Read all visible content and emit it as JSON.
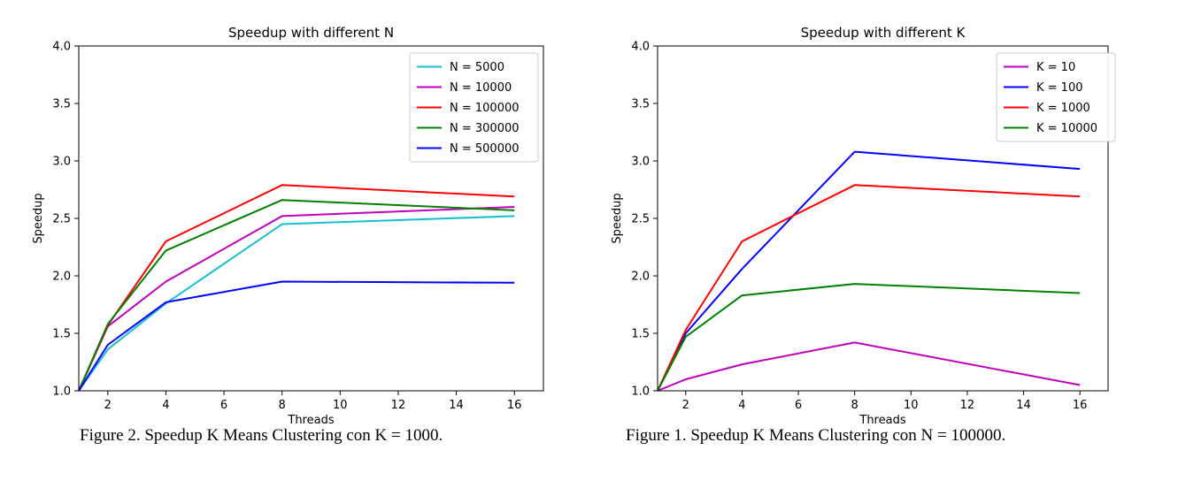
{
  "chart_data": [
    {
      "type": "line",
      "title": "Speedup with different N",
      "xlabel": "Threads",
      "ylabel": "Speedup",
      "xlim": [
        1,
        17
      ],
      "ylim": [
        1.0,
        4.0
      ],
      "xticks": [
        2,
        4,
        6,
        8,
        10,
        12,
        14,
        16
      ],
      "yticks": [
        1.0,
        1.5,
        2.0,
        2.5,
        3.0,
        3.5,
        4.0
      ],
      "ytick_labels": [
        "1.0",
        "1.5",
        "2.0",
        "2.5",
        "3.0",
        "3.5",
        "4.0"
      ],
      "grid": false,
      "legend_position": "top-right",
      "x": [
        1,
        2,
        4,
        8,
        16
      ],
      "series": [
        {
          "name": "N = 5000",
          "color": "#17becf",
          "values": [
            1.0,
            1.36,
            1.76,
            2.45,
            2.52
          ]
        },
        {
          "name": "N = 10000",
          "color": "#bf00bf",
          "values": [
            1.0,
            1.56,
            1.95,
            2.52,
            2.6
          ]
        },
        {
          "name": "N = 100000",
          "color": "#ff0000",
          "values": [
            1.0,
            1.57,
            2.3,
            2.79,
            2.69
          ]
        },
        {
          "name": "N = 300000",
          "color": "#008000",
          "values": [
            1.0,
            1.58,
            2.22,
            2.66,
            2.57
          ]
        },
        {
          "name": "N = 500000",
          "color": "#0000ff",
          "values": [
            1.0,
            1.4,
            1.77,
            1.95,
            1.94
          ]
        }
      ],
      "caption": "Figure 2. Speedup K Means Clustering con K = 1000."
    },
    {
      "type": "line",
      "title": "Speedup with different K",
      "xlabel": "Threads",
      "ylabel": "Speedup",
      "xlim": [
        1,
        17
      ],
      "ylim": [
        1.0,
        4.0
      ],
      "xticks": [
        2,
        4,
        6,
        8,
        10,
        12,
        14,
        16
      ],
      "yticks": [
        1.0,
        1.5,
        2.0,
        2.5,
        3.0,
        3.5,
        4.0
      ],
      "ytick_labels": [
        "1.0",
        "1.5",
        "2.0",
        "2.5",
        "3.0",
        "3.5",
        "4.0"
      ],
      "grid": false,
      "legend_position": "top-right",
      "x": [
        1,
        2,
        4,
        8,
        16
      ],
      "series": [
        {
          "name": "K = 10",
          "color": "#bf00bf",
          "values": [
            1.0,
            1.1,
            1.23,
            1.42,
            1.05
          ]
        },
        {
          "name": "K = 100",
          "color": "#0000ff",
          "values": [
            1.0,
            1.5,
            2.06,
            3.08,
            2.93
          ]
        },
        {
          "name": "K = 1000",
          "color": "#ff0000",
          "values": [
            1.0,
            1.53,
            2.3,
            2.79,
            2.69
          ]
        },
        {
          "name": "K = 10000",
          "color": "#008000",
          "values": [
            1.0,
            1.47,
            1.83,
            1.93,
            1.85
          ]
        }
      ],
      "caption": "Figure 1. Speedup K Means Clustering con N = 100000."
    }
  ]
}
